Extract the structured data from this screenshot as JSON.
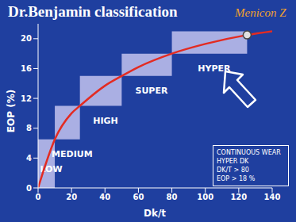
{
  "chart_data": {
    "type": "line",
    "title": "Dr.Benjamin classification",
    "x_label": "Dk/t",
    "y_label": "EOP (%)",
    "x": [
      0,
      5,
      10,
      20,
      25,
      40,
      50,
      60,
      80,
      100,
      125,
      140
    ],
    "values": [
      0,
      3.5,
      6.5,
      10,
      11,
      13.7,
      15,
      16.2,
      18,
      19.3,
      20.5,
      21
    ],
    "color": "#e32b22",
    "xlim": [
      0,
      140
    ],
    "xticks": [
      0,
      20,
      40,
      60,
      80,
      100,
      120,
      140
    ],
    "ylim": [
      0,
      22
    ],
    "yticks": [
      0,
      4,
      8,
      12,
      16,
      20
    ],
    "grid": false,
    "regions": [
      {
        "label": "LOW",
        "x": [
          0,
          10
        ],
        "y": [
          0,
          6.5
        ]
      },
      {
        "label": "MEDIUM",
        "x": [
          10,
          25
        ],
        "y": [
          6.5,
          11
        ]
      },
      {
        "label": "HIGH",
        "x": [
          25,
          50
        ],
        "y": [
          11,
          15
        ]
      },
      {
        "label": "SUPER",
        "x": [
          50,
          80
        ],
        "y": [
          15,
          18
        ]
      },
      {
        "label": "HYPER",
        "x": [
          80,
          125
        ],
        "y": [
          18,
          21
        ]
      }
    ],
    "highlight": {
      "label": "Menicon Z",
      "x": 125,
      "y": 20.5
    },
    "note": [
      "CONTINUOUS WEAR",
      "HYPER DK",
      "DK/T > 80",
      "EOP > 18 %"
    ]
  }
}
